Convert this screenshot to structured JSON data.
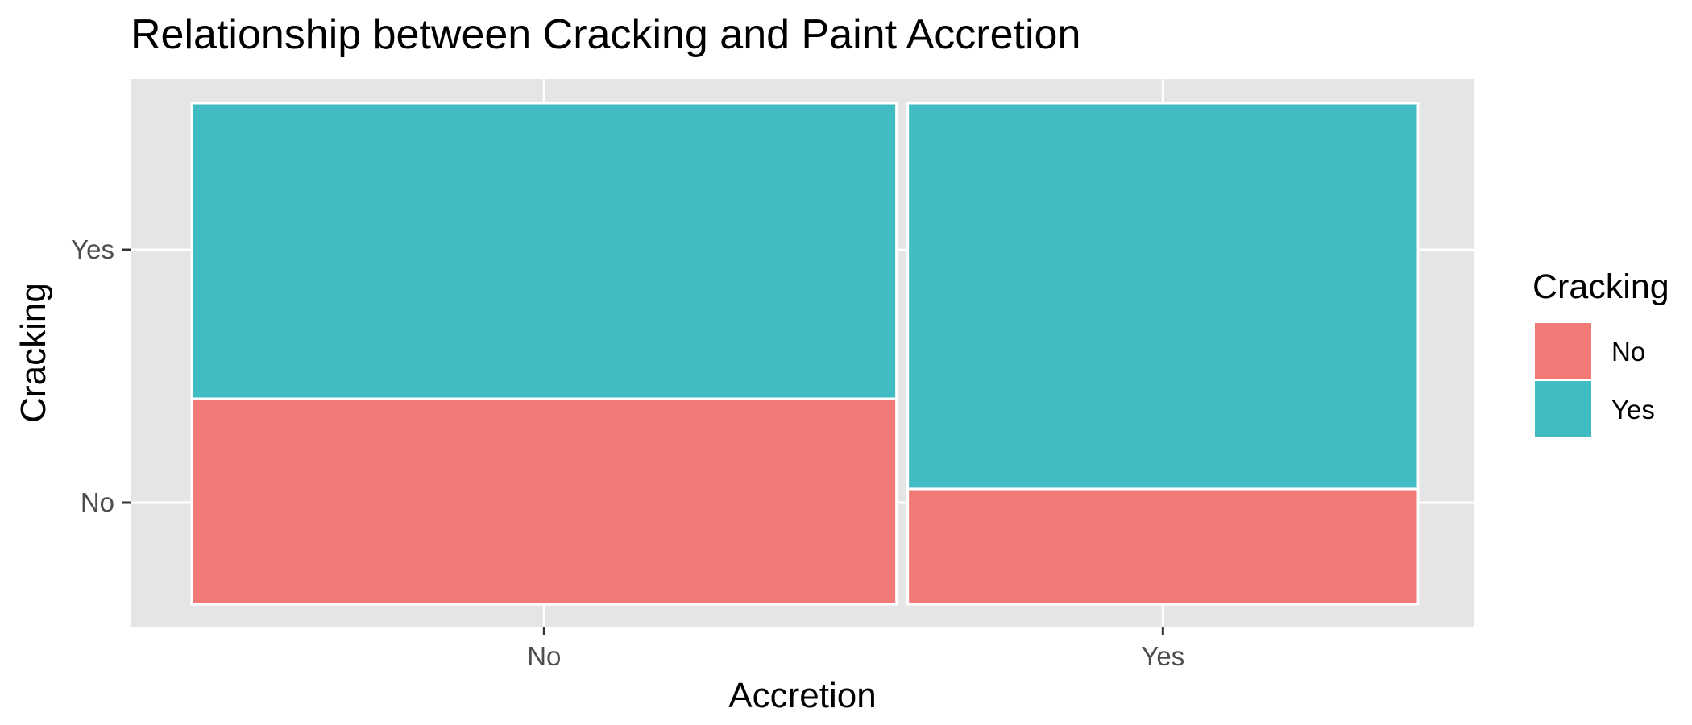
{
  "chart_data": {
    "type": "mosaic",
    "title": "Relationship between Cracking and Paint Accretion",
    "xlabel": "Accretion",
    "ylabel": "Cracking",
    "x_categories": [
      "No",
      "Yes"
    ],
    "y_categories": [
      "No",
      "Yes"
    ],
    "x_axis_ticks": [
      "No",
      "Yes"
    ],
    "y_axis_ticks": [
      "No",
      "Yes"
    ],
    "x_proportions": [
      0.58,
      0.42
    ],
    "series": [
      {
        "name": "No",
        "values": [
          0.41,
          0.23
        ]
      },
      {
        "name": "Yes",
        "values": [
          0.59,
          0.77
        ]
      }
    ],
    "legend": {
      "title": "Cracking",
      "position": "right",
      "entries": [
        "No",
        "Yes"
      ]
    },
    "colors": {
      "No": "#F17A77",
      "Yes": "#40BCC2"
    },
    "grid": true,
    "background": "#E5E5E5"
  }
}
